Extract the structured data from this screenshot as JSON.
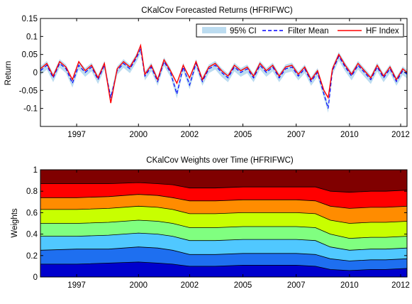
{
  "chart_data": [
    {
      "type": "line",
      "title": "CKalCov Forecasted Returns (HFRIFWC)",
      "xlabel": "",
      "ylabel": "Return",
      "xlim": [
        1995.3,
        2012.5
      ],
      "ylim": [
        -0.15,
        0.15
      ],
      "x_ticks": [
        "1997",
        "2000",
        "2002",
        "2005",
        "2007",
        "2010",
        "2012"
      ],
      "x_tick_values": [
        1997.0,
        1999.9,
        2002.3,
        2004.8,
        2007.3,
        2009.8,
        2012.2
      ],
      "y_ticks": [
        "0.15",
        "0.1",
        "0.05",
        "0",
        "-0.05",
        "-0.1"
      ],
      "y_tick_values": [
        0.15,
        0.1,
        0.05,
        0,
        -0.05,
        -0.1
      ],
      "legend": {
        "placement": "top-right",
        "entries": [
          {
            "label": "95% CI",
            "color": "#bcdcf0",
            "style": "patch"
          },
          {
            "label": "Filter Mean",
            "color": "#0000ff",
            "style": "dashed"
          },
          {
            "label": "HF Index",
            "color": "#ff0000",
            "style": "solid"
          }
        ]
      },
      "series": [
        {
          "name": "HF Index",
          "color": "#ff0000",
          "x": [
            1995.3,
            1995.6,
            1995.9,
            1996.2,
            1996.5,
            1996.8,
            1997.1,
            1997.4,
            1997.7,
            1998.0,
            1998.3,
            1998.6,
            1998.9,
            1999.2,
            1999.5,
            1999.8,
            2000.0,
            2000.2,
            2000.5,
            2000.8,
            2001.1,
            2001.4,
            2001.7,
            2002.0,
            2002.3,
            2002.6,
            2002.9,
            2003.2,
            2003.5,
            2003.8,
            2004.1,
            2004.4,
            2004.7,
            2005.0,
            2005.3,
            2005.6,
            2005.9,
            2006.2,
            2006.5,
            2006.8,
            2007.1,
            2007.4,
            2007.7,
            2008.0,
            2008.3,
            2008.6,
            2008.8,
            2009.0,
            2009.3,
            2009.6,
            2009.9,
            2010.2,
            2010.5,
            2010.8,
            2011.1,
            2011.4,
            2011.7,
            2012.0,
            2012.3,
            2012.5
          ],
          "values": [
            0.01,
            0.025,
            -0.01,
            0.03,
            0.015,
            -0.02,
            0.03,
            0.005,
            0.02,
            -0.015,
            0.025,
            -0.085,
            0.01,
            0.03,
            0.015,
            0.045,
            0.075,
            -0.005,
            0.02,
            -0.02,
            0.035,
            0.005,
            -0.03,
            0.02,
            -0.015,
            0.03,
            -0.02,
            0.015,
            0.025,
            0.005,
            -0.01,
            0.02,
            0.005,
            0.015,
            -0.01,
            0.025,
            0.005,
            0.02,
            -0.01,
            0.015,
            0.02,
            -0.005,
            0.015,
            -0.02,
            0.005,
            -0.05,
            -0.07,
            0.01,
            0.05,
            0.02,
            -0.005,
            0.025,
            0.005,
            -0.015,
            0.02,
            -0.01,
            0.015,
            -0.02,
            0.01,
            0.0
          ]
        },
        {
          "name": "Filter Mean",
          "color": "#0000ff",
          "x": [
            1995.3,
            1995.6,
            1995.9,
            1996.2,
            1996.5,
            1996.8,
            1997.1,
            1997.4,
            1997.7,
            1998.0,
            1998.3,
            1998.6,
            1998.9,
            1999.2,
            1999.5,
            1999.8,
            2000.0,
            2000.2,
            2000.5,
            2000.8,
            2001.1,
            2001.4,
            2001.7,
            2002.0,
            2002.3,
            2002.6,
            2002.9,
            2003.2,
            2003.5,
            2003.8,
            2004.1,
            2004.4,
            2004.7,
            2005.0,
            2005.3,
            2005.6,
            2005.9,
            2006.2,
            2006.5,
            2006.8,
            2007.1,
            2007.4,
            2007.7,
            2008.0,
            2008.3,
            2008.6,
            2008.8,
            2009.0,
            2009.3,
            2009.6,
            2009.9,
            2010.2,
            2010.5,
            2010.8,
            2011.1,
            2011.4,
            2011.7,
            2012.0,
            2012.3,
            2012.5
          ],
          "values": [
            0.005,
            0.02,
            -0.015,
            0.025,
            0.01,
            -0.03,
            0.02,
            0.0,
            0.015,
            -0.02,
            0.02,
            -0.07,
            0.005,
            0.025,
            0.01,
            0.04,
            0.065,
            -0.01,
            0.015,
            -0.025,
            0.03,
            0.0,
            -0.06,
            0.015,
            -0.035,
            0.025,
            -0.025,
            0.01,
            0.02,
            0.0,
            -0.015,
            0.015,
            0.0,
            0.01,
            -0.015,
            0.02,
            0.0,
            0.015,
            -0.015,
            0.01,
            0.015,
            -0.01,
            0.01,
            -0.025,
            0.0,
            -0.06,
            -0.1,
            0.005,
            0.045,
            0.015,
            -0.01,
            0.02,
            0.0,
            -0.02,
            0.015,
            -0.015,
            0.01,
            -0.025,
            0.005,
            -0.005
          ]
        }
      ]
    },
    {
      "type": "area",
      "title": "CKalCov Weights over Time (HFRIFWC)",
      "xlabel": "",
      "ylabel": "Weights",
      "xlim": [
        1995.3,
        2012.5
      ],
      "ylim": [
        0,
        1
      ],
      "stacked": true,
      "x_ticks": [
        "1997",
        "2000",
        "2002",
        "2005",
        "2007",
        "2010",
        "2012"
      ],
      "x_tick_values": [
        1997.0,
        1999.9,
        2002.3,
        2004.8,
        2007.3,
        2009.8,
        2012.2
      ],
      "y_ticks": [
        "0",
        "0.2",
        "0.4",
        "0.6",
        "0.8",
        "1"
      ],
      "y_tick_values": [
        0,
        0.2,
        0.4,
        0.6,
        0.8,
        1
      ],
      "x": [
        1995.3,
        1997.0,
        1998.5,
        1999.9,
        2000.8,
        2001.5,
        2002.3,
        2003.5,
        2004.8,
        2006.0,
        2007.3,
        2008.2,
        2008.9,
        2009.8,
        2010.8,
        2011.5,
        2012.5
      ],
      "boundaries": [
        [
          0.12,
          0.12,
          0.13,
          0.14,
          0.13,
          0.12,
          0.1,
          0.1,
          0.11,
          0.11,
          0.11,
          0.1,
          0.07,
          0.06,
          0.07,
          0.07,
          0.08
        ],
        [
          0.25,
          0.26,
          0.26,
          0.28,
          0.27,
          0.25,
          0.21,
          0.21,
          0.22,
          0.22,
          0.22,
          0.21,
          0.17,
          0.15,
          0.16,
          0.16,
          0.17
        ],
        [
          0.38,
          0.38,
          0.39,
          0.41,
          0.4,
          0.38,
          0.34,
          0.34,
          0.35,
          0.35,
          0.35,
          0.34,
          0.28,
          0.25,
          0.26,
          0.26,
          0.27
        ],
        [
          0.5,
          0.5,
          0.51,
          0.53,
          0.52,
          0.5,
          0.46,
          0.46,
          0.47,
          0.47,
          0.47,
          0.46,
          0.4,
          0.36,
          0.37,
          0.37,
          0.38
        ],
        [
          0.63,
          0.63,
          0.64,
          0.66,
          0.65,
          0.63,
          0.59,
          0.59,
          0.6,
          0.6,
          0.6,
          0.59,
          0.53,
          0.5,
          0.51,
          0.51,
          0.52
        ],
        [
          0.74,
          0.74,
          0.75,
          0.77,
          0.76,
          0.74,
          0.71,
          0.71,
          0.72,
          0.72,
          0.72,
          0.71,
          0.66,
          0.64,
          0.65,
          0.65,
          0.66
        ],
        [
          0.87,
          0.87,
          0.87,
          0.88,
          0.87,
          0.86,
          0.83,
          0.83,
          0.84,
          0.84,
          0.84,
          0.84,
          0.8,
          0.79,
          0.8,
          0.8,
          0.81
        ]
      ],
      "band_colors": [
        "#0000cd",
        "#1e6ff0",
        "#50c8ff",
        "#80ff80",
        "#c8ff00",
        "#ff8c00",
        "#ff0000",
        "#800000"
      ]
    }
  ]
}
